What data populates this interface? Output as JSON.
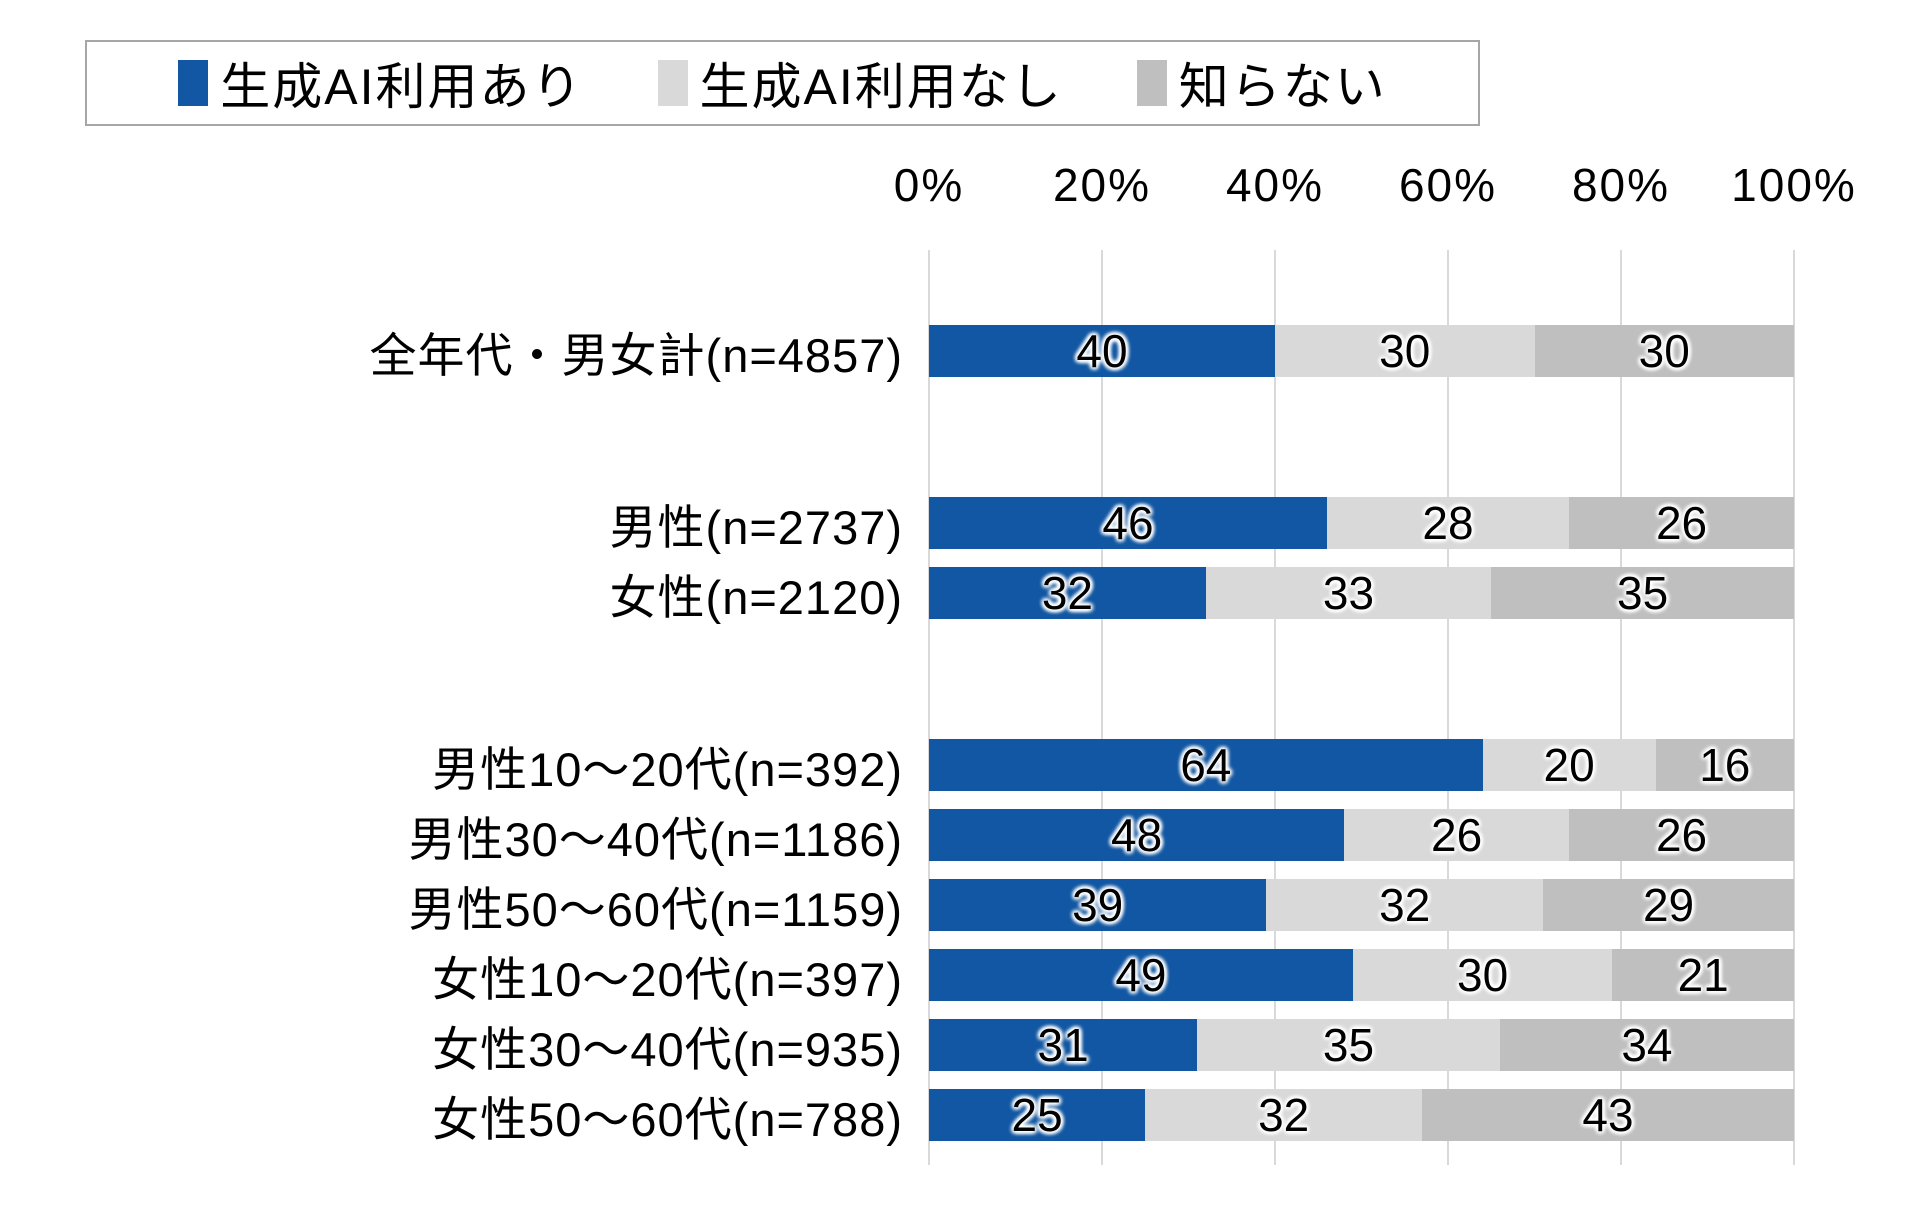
{
  "page": {
    "background": "#ffffff"
  },
  "legend": {
    "border_color": "#a6a6a6"
  },
  "chart_data": {
    "type": "bar",
    "stacked": true,
    "orientation": "horizontal",
    "title": "",
    "xlabel": "",
    "ylabel": "",
    "xlim": [
      0,
      100
    ],
    "grid": true,
    "legend_position": "top",
    "x_ticks": [
      "0%",
      "20%",
      "40%",
      "60%",
      "80%",
      "100%"
    ],
    "categories": [
      "全年代・男女計(n=4857)",
      "男性(n=2737)",
      "女性(n=2120)",
      "男性10〜20代(n=392)",
      "男性30〜40代(n=1186)",
      "男性50〜60代(n=1159)",
      "女性10〜20代(n=397)",
      "女性30〜40代(n=935)",
      "女性50〜60代(n=788)"
    ],
    "group_starts": [
      0,
      1,
      3
    ],
    "series": [
      {
        "name": "生成AI利用あり",
        "color": "#1157a3",
        "values": [
          40,
          46,
          32,
          64,
          48,
          39,
          49,
          31,
          25
        ]
      },
      {
        "name": "生成AI利用なし",
        "color": "#d9d9d9",
        "values": [
          30,
          28,
          33,
          20,
          26,
          32,
          30,
          35,
          32
        ]
      },
      {
        "name": "知らない",
        "color": "#bfbfbf",
        "values": [
          30,
          26,
          35,
          16,
          26,
          29,
          21,
          34,
          43
        ]
      }
    ],
    "value_labels": true
  }
}
